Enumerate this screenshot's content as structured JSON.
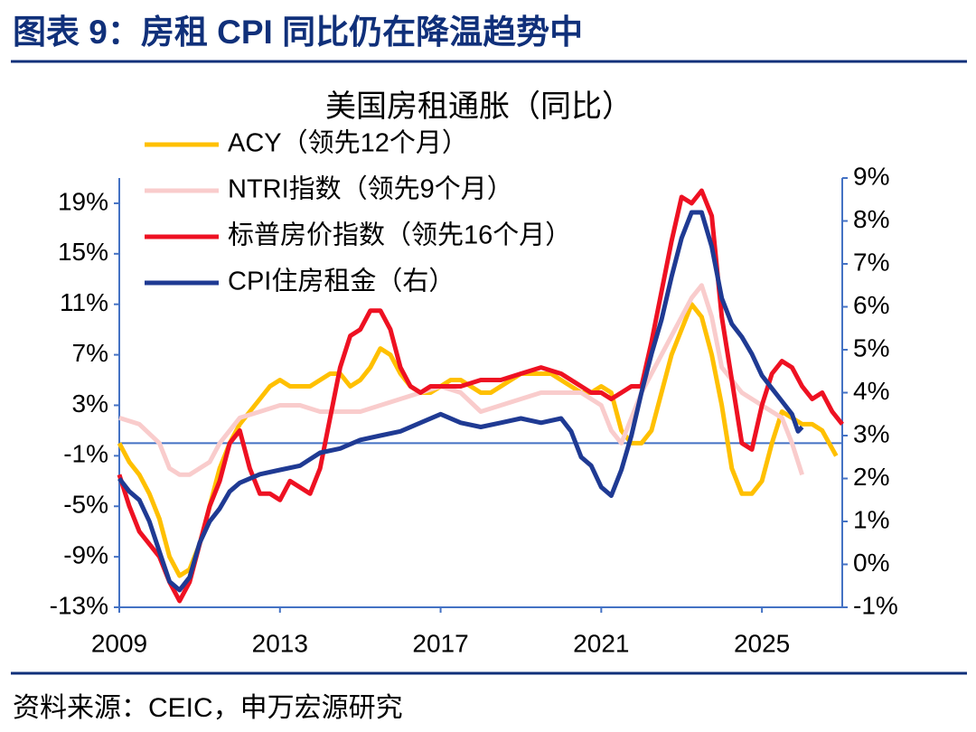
{
  "header": {
    "title": "图表 9：房租 CPI 同比仍在降温趋势中"
  },
  "source": "资料来源：CEIC，申万宏源研究",
  "chart_data": {
    "type": "line",
    "title": "美国房租通胀（同比）",
    "xlim": [
      2009,
      2027
    ],
    "xticks": [
      2009,
      2013,
      2017,
      2021,
      2025
    ],
    "ylim": [
      -13,
      21
    ],
    "yticks": [
      {
        "value": -13,
        "label": "-13%"
      },
      {
        "value": -9,
        "label": "-9%"
      },
      {
        "value": -5,
        "label": "-5%"
      },
      {
        "value": -1,
        "label": "-1%"
      },
      {
        "value": 3,
        "label": "3%"
      },
      {
        "value": 7,
        "label": "7%"
      },
      {
        "value": 11,
        "label": "11%"
      },
      {
        "value": 15,
        "label": "15%"
      },
      {
        "value": 19,
        "label": "19%"
      }
    ],
    "y2lim": [
      -1,
      9
    ],
    "y2ticks": [
      {
        "value": -1,
        "label": "-1%"
      },
      {
        "value": 0,
        "label": "0%"
      },
      {
        "value": 1,
        "label": "1%"
      },
      {
        "value": 2,
        "label": "2%"
      },
      {
        "value": 3,
        "label": "3%"
      },
      {
        "value": 4,
        "label": "4%"
      },
      {
        "value": 5,
        "label": "5%"
      },
      {
        "value": 6,
        "label": "6%"
      },
      {
        "value": 7,
        "label": "7%"
      },
      {
        "value": 8,
        "label": "8%"
      },
      {
        "value": 9,
        "label": "9%"
      }
    ],
    "legend": "upper left",
    "series": [
      {
        "name": "ACY（领先12个月）",
        "color": "#ffc000",
        "x": [
          2009,
          2009.25,
          2009.5,
          2009.75,
          2010,
          2010.25,
          2010.5,
          2010.75,
          2011,
          2011.25,
          2011.5,
          2011.75,
          2012,
          2012.25,
          2012.5,
          2012.75,
          2013,
          2013.25,
          2013.5,
          2013.75,
          2014,
          2014.25,
          2014.5,
          2014.75,
          2015,
          2015.25,
          2015.5,
          2015.75,
          2016,
          2016.25,
          2016.5,
          2016.75,
          2017,
          2017.25,
          2017.5,
          2017.75,
          2018,
          2018.25,
          2018.5,
          2018.75,
          2019,
          2019.25,
          2019.5,
          2019.75,
          2020,
          2020.25,
          2020.5,
          2020.75,
          2021,
          2021.25,
          2021.5,
          2021.75,
          2022,
          2022.25,
          2022.5,
          2022.75,
          2023,
          2023.25,
          2023.5,
          2023.75,
          2024,
          2024.25,
          2024.5,
          2024.75,
          2025,
          2025.25,
          2025.5,
          2025.75,
          2026,
          2026.25,
          2026.5,
          2026.85
        ],
        "values": [
          0,
          -1.5,
          -2.5,
          -4,
          -6,
          -9,
          -10.5,
          -10,
          -8,
          -5,
          -2,
          0,
          1.5,
          2.5,
          3.5,
          4.5,
          5,
          4.5,
          4.5,
          4.5,
          5,
          5.5,
          5.5,
          4.5,
          5,
          6,
          7.5,
          7,
          5.5,
          4.5,
          4,
          4,
          4.5,
          5,
          5,
          4.5,
          4,
          4,
          4.5,
          5,
          5.5,
          5.5,
          5.5,
          5.5,
          5,
          4.5,
          4,
          4,
          4.5,
          4,
          1,
          0,
          0,
          1,
          4,
          7,
          9,
          11,
          10,
          7,
          3,
          -2,
          -4,
          -4,
          -3,
          0,
          2.5,
          2,
          1.5,
          1.5,
          1,
          -1
        ]
      },
      {
        "name": "NTRI指数（领先9个月）",
        "color": "#f9cccc",
        "x": [
          2009,
          2009.5,
          2010,
          2010.25,
          2010.5,
          2010.75,
          2011,
          2011.25,
          2011.5,
          2011.75,
          2012,
          2012.5,
          2013,
          2013.5,
          2014,
          2014.5,
          2015,
          2015.5,
          2016,
          2016.5,
          2017,
          2017.5,
          2018,
          2018.5,
          2019,
          2019.5,
          2020,
          2020.5,
          2021,
          2021.25,
          2021.5,
          2021.75,
          2022,
          2022.5,
          2023,
          2023.25,
          2023.5,
          2023.75,
          2024,
          2024.25,
          2024.5,
          2024.75,
          2025,
          2025.25,
          2025.5,
          2025.75,
          2026
        ],
        "values": [
          2,
          1.5,
          0,
          -2,
          -2.5,
          -2.5,
          -2,
          -1.5,
          0,
          1,
          2,
          2.5,
          3,
          3,
          2.5,
          2.5,
          2.5,
          3,
          3.5,
          4,
          4.5,
          4,
          2.5,
          3,
          3.5,
          4,
          4,
          4,
          3,
          1,
          0,
          2,
          4,
          7,
          10,
          11.5,
          12.5,
          10,
          6,
          5,
          4,
          3.5,
          3,
          2.5,
          2,
          0,
          -2.5
        ]
      },
      {
        "name": "标普房价指数（领先16个月）",
        "color": "#ee1122",
        "x": [
          2009,
          2009.25,
          2009.5,
          2009.75,
          2010,
          2010.25,
          2010.5,
          2010.75,
          2011,
          2011.25,
          2011.5,
          2011.75,
          2012,
          2012.25,
          2012.5,
          2012.75,
          2013,
          2013.25,
          2013.5,
          2013.75,
          2014,
          2014.25,
          2014.5,
          2014.75,
          2015,
          2015.25,
          2015.5,
          2015.75,
          2016,
          2016.25,
          2016.5,
          2016.75,
          2017,
          2017.5,
          2018,
          2018.5,
          2019,
          2019.5,
          2020,
          2020.25,
          2020.5,
          2020.75,
          2021,
          2021.25,
          2021.5,
          2021.75,
          2022,
          2022.25,
          2022.5,
          2022.75,
          2023,
          2023.25,
          2023.5,
          2023.75,
          2024,
          2024.25,
          2024.5,
          2024.75,
          2025,
          2025.25,
          2025.5,
          2025.75,
          2026,
          2026.25,
          2026.5,
          2026.75,
          2027
        ],
        "values": [
          -2.5,
          -5,
          -7,
          -8,
          -9,
          -11,
          -12.5,
          -11,
          -8,
          -5,
          -3,
          0,
          1,
          -2,
          -4,
          -4,
          -4.5,
          -3,
          -3.5,
          -4,
          -2,
          2,
          6,
          8.5,
          9,
          10.5,
          10.5,
          9,
          6,
          4.5,
          4,
          4.5,
          4.5,
          4.5,
          5,
          5,
          5.5,
          6,
          5.5,
          5,
          4.5,
          4,
          4,
          3.5,
          4,
          4.5,
          4.5,
          8,
          12,
          16,
          19.5,
          19,
          20,
          18,
          10,
          5,
          0,
          -0.5,
          3,
          5.5,
          6.5,
          6,
          4.5,
          3.5,
          4,
          2.5,
          1.5
        ]
      },
      {
        "name": "CPI住房租金（右）",
        "color": "#1f3a93",
        "axis": "y2",
        "x": [
          2009,
          2009.25,
          2009.5,
          2009.75,
          2010,
          2010.25,
          2010.5,
          2010.75,
          2011,
          2011.25,
          2011.5,
          2011.75,
          2012,
          2012.5,
          2013,
          2013.5,
          2014,
          2014.5,
          2015,
          2015.5,
          2016,
          2016.5,
          2017,
          2017.5,
          2018,
          2018.5,
          2019,
          2019.5,
          2020,
          2020.25,
          2020.5,
          2020.75,
          2021,
          2021.25,
          2021.5,
          2021.75,
          2022,
          2022.25,
          2022.5,
          2022.75,
          2023,
          2023.25,
          2023.5,
          2023.75,
          2024,
          2024.25,
          2024.5,
          2024.75,
          2025,
          2025.25,
          2025.5,
          2025.75,
          2025.9,
          2026
        ],
        "values": [
          2,
          1.7,
          1.5,
          1,
          0.3,
          -0.4,
          -0.6,
          -0.3,
          0.5,
          1,
          1.3,
          1.7,
          1.9,
          2.1,
          2.2,
          2.3,
          2.6,
          2.7,
          2.9,
          3,
          3.1,
          3.3,
          3.5,
          3.3,
          3.2,
          3.3,
          3.4,
          3.3,
          3.4,
          3.1,
          2.5,
          2.3,
          1.8,
          1.6,
          2.2,
          3,
          4,
          4.9,
          5.7,
          6.7,
          7.6,
          8.2,
          8.2,
          7.4,
          6.2,
          5.6,
          5.3,
          4.9,
          4.4,
          4.1,
          3.8,
          3.5,
          3.1,
          3.2
        ]
      }
    ]
  }
}
